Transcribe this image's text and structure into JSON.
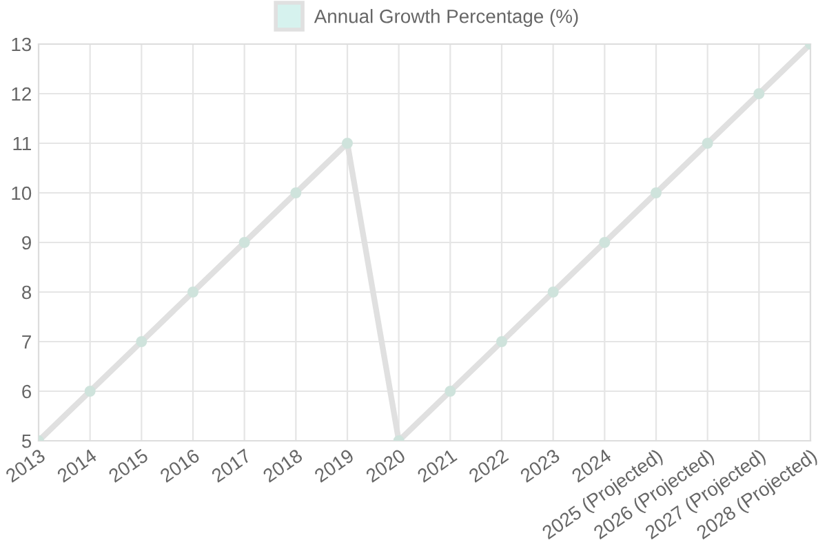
{
  "chart_data": {
    "type": "line",
    "categories": [
      "2013",
      "2014",
      "2015",
      "2016",
      "2017",
      "2018",
      "2019",
      "2020",
      "2021",
      "2022",
      "2023",
      "2024",
      "2025 (Projected)",
      "2026 (Projected)",
      "2027 (Projected)",
      "2028 (Projected)"
    ],
    "series": [
      {
        "name": "Annual Growth Percentage (%)",
        "color": "#e0e0e0",
        "values": [
          5,
          6,
          7,
          8,
          9,
          10,
          11,
          5,
          6,
          7,
          8,
          9,
          10,
          11,
          12,
          13
        ]
      }
    ],
    "ylim": [
      5,
      13
    ],
    "yticks": [
      5,
      6,
      7,
      8,
      9,
      10,
      11,
      12,
      13
    ],
    "grid": true,
    "legend": "top",
    "marker": "circle",
    "line_style": "solid"
  }
}
